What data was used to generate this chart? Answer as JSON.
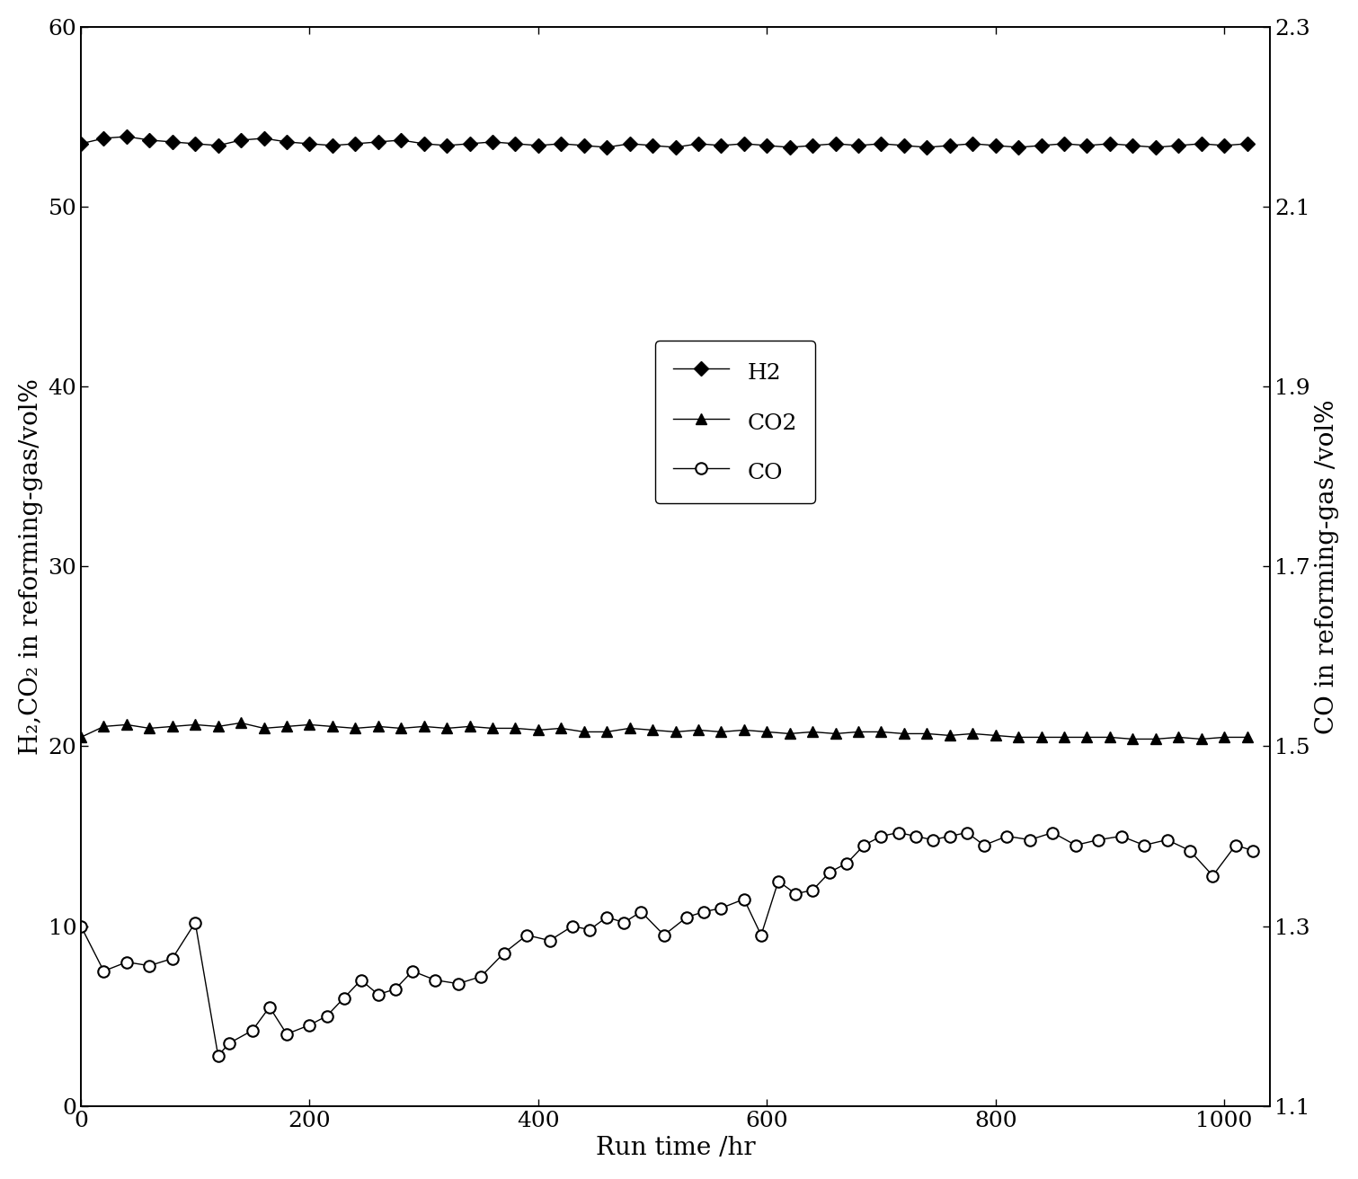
{
  "title": "",
  "xlabel": "Run time /hr",
  "ylabel_left": "H₂,CO₂ in reforming-gas/vol%",
  "ylabel_right": "CO in reforming-gas /vol%",
  "xlim": [
    0,
    1040
  ],
  "ylim_left": [
    0,
    60
  ],
  "ylim_right": [
    1.1,
    2.3
  ],
  "xticks": [
    0,
    200,
    400,
    600,
    800,
    1000
  ],
  "yticks_left": [
    0,
    10,
    20,
    30,
    40,
    50,
    60
  ],
  "yticks_right": [
    1.1,
    1.3,
    1.5,
    1.7,
    1.9,
    2.1,
    2.3
  ],
  "H2_x": [
    0,
    20,
    40,
    60,
    80,
    100,
    120,
    140,
    160,
    180,
    200,
    220,
    240,
    260,
    280,
    300,
    320,
    340,
    360,
    380,
    400,
    420,
    440,
    460,
    480,
    500,
    520,
    540,
    560,
    580,
    600,
    620,
    640,
    660,
    680,
    700,
    720,
    740,
    760,
    780,
    800,
    820,
    840,
    860,
    880,
    900,
    920,
    940,
    960,
    980,
    1000,
    1020
  ],
  "H2_y": [
    53.5,
    53.8,
    53.9,
    53.7,
    53.6,
    53.5,
    53.4,
    53.7,
    53.8,
    53.6,
    53.5,
    53.4,
    53.5,
    53.6,
    53.7,
    53.5,
    53.4,
    53.5,
    53.6,
    53.5,
    53.4,
    53.5,
    53.4,
    53.3,
    53.5,
    53.4,
    53.3,
    53.5,
    53.4,
    53.5,
    53.4,
    53.3,
    53.4,
    53.5,
    53.4,
    53.5,
    53.4,
    53.3,
    53.4,
    53.5,
    53.4,
    53.3,
    53.4,
    53.5,
    53.4,
    53.5,
    53.4,
    53.3,
    53.4,
    53.5,
    53.4,
    53.5
  ],
  "CO2_x": [
    0,
    20,
    40,
    60,
    80,
    100,
    120,
    140,
    160,
    180,
    200,
    220,
    240,
    260,
    280,
    300,
    320,
    340,
    360,
    380,
    400,
    420,
    440,
    460,
    480,
    500,
    520,
    540,
    560,
    580,
    600,
    620,
    640,
    660,
    680,
    700,
    720,
    740,
    760,
    780,
    800,
    820,
    840,
    860,
    880,
    900,
    920,
    940,
    960,
    980,
    1000,
    1020
  ],
  "CO2_y": [
    20.5,
    21.1,
    21.2,
    21.0,
    21.1,
    21.2,
    21.1,
    21.3,
    21.0,
    21.1,
    21.2,
    21.1,
    21.0,
    21.1,
    21.0,
    21.1,
    21.0,
    21.1,
    21.0,
    21.0,
    20.9,
    21.0,
    20.8,
    20.8,
    21.0,
    20.9,
    20.8,
    20.9,
    20.8,
    20.9,
    20.8,
    20.7,
    20.8,
    20.7,
    20.8,
    20.8,
    20.7,
    20.7,
    20.6,
    20.7,
    20.6,
    20.5,
    20.5,
    20.5,
    20.5,
    20.5,
    20.4,
    20.4,
    20.5,
    20.4,
    20.5,
    20.5
  ],
  "CO_x": [
    0,
    20,
    40,
    60,
    80,
    100,
    120,
    130,
    150,
    165,
    180,
    200,
    215,
    230,
    245,
    260,
    275,
    290,
    310,
    330,
    350,
    370,
    390,
    410,
    430,
    445,
    460,
    475,
    490,
    510,
    530,
    545,
    560,
    580,
    595,
    610,
    625,
    640,
    655,
    670,
    685,
    700,
    715,
    730,
    745,
    760,
    775,
    790,
    810,
    830,
    850,
    870,
    890,
    910,
    930,
    950,
    970,
    990,
    1010,
    1025
  ],
  "CO_y": [
    10.0,
    7.5,
    8.0,
    7.8,
    8.2,
    10.2,
    2.8,
    3.5,
    4.2,
    5.5,
    4.0,
    4.5,
    5.0,
    6.0,
    7.0,
    6.2,
    6.5,
    7.5,
    7.0,
    6.8,
    7.2,
    8.5,
    9.5,
    9.2,
    10.0,
    9.8,
    10.5,
    10.2,
    10.8,
    9.5,
    10.5,
    10.8,
    11.0,
    11.5,
    9.5,
    12.5,
    11.8,
    12.0,
    13.0,
    13.5,
    14.5,
    15.0,
    15.2,
    15.0,
    14.8,
    15.0,
    15.2,
    14.5,
    15.0,
    14.8,
    15.2,
    14.5,
    14.8,
    15.0,
    14.5,
    14.8,
    14.2,
    12.8,
    14.5,
    14.2
  ],
  "line_color": "#000000",
  "bg_color": "#ffffff",
  "legend_labels": [
    "H2",
    "CO2",
    "CO"
  ],
  "fontsize_label": 20,
  "fontsize_tick": 18,
  "fontsize_legend": 18
}
